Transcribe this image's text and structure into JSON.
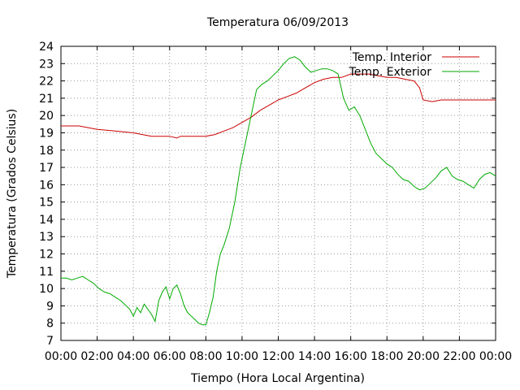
{
  "chart_data": {
    "type": "line",
    "title": "Temperatura 06/09/2013",
    "xlabel": "Tiempo (Hora Local Argentina)",
    "ylabel": "Temperatura (Grados Celsius)",
    "xlim": [
      0,
      24
    ],
    "ylim": [
      7,
      24
    ],
    "x_ticks": [
      "00:00",
      "02:00",
      "04:00",
      "06:00",
      "08:00",
      "10:00",
      "12:00",
      "14:00",
      "16:00",
      "18:00",
      "20:00",
      "22:00",
      "00:00"
    ],
    "y_ticks": [
      7,
      8,
      9,
      10,
      11,
      12,
      13,
      14,
      15,
      16,
      17,
      18,
      19,
      20,
      21,
      22,
      23,
      24
    ],
    "grid": true,
    "legend_position": "top-right",
    "series": [
      {
        "name": "Temp. Interior",
        "color": "#cc0000",
        "x": [
          0,
          1,
          2,
          3,
          4,
          4.5,
          5,
          6,
          6.4,
          6.6,
          7,
          8,
          8.5,
          9,
          9.5,
          10,
          10.5,
          11,
          11.5,
          12,
          12.5,
          13,
          13.5,
          14,
          14.5,
          15,
          15.5,
          16,
          16.5,
          17,
          17.5,
          18,
          18.5,
          19,
          19.5,
          19.8,
          20,
          20.5,
          21,
          22,
          23,
          24
        ],
        "y": [
          19.4,
          19.4,
          19.2,
          19.1,
          19.0,
          18.9,
          18.8,
          18.8,
          18.7,
          18.8,
          18.8,
          18.8,
          18.9,
          19.1,
          19.3,
          19.6,
          19.9,
          20.3,
          20.6,
          20.9,
          21.1,
          21.3,
          21.6,
          21.9,
          22.1,
          22.2,
          22.2,
          22.4,
          22.4,
          22.4,
          22.3,
          22.2,
          22.2,
          22.1,
          22.0,
          21.6,
          20.9,
          20.8,
          20.9,
          20.9,
          20.9,
          20.9
        ]
      },
      {
        "name": "Temp. Exterior",
        "color": "#00aa00",
        "x": [
          0,
          0.3,
          0.6,
          0.9,
          1.2,
          1.5,
          1.8,
          2.1,
          2.4,
          2.7,
          3.0,
          3.3,
          3.6,
          3.8,
          4.0,
          4.2,
          4.4,
          4.6,
          4.8,
          5.0,
          5.2,
          5.4,
          5.6,
          5.8,
          6.0,
          6.2,
          6.4,
          6.6,
          6.8,
          7.0,
          7.2,
          7.4,
          7.6,
          7.8,
          8.0,
          8.2,
          8.4,
          8.6,
          8.8,
          9.0,
          9.3,
          9.6,
          9.9,
          10.2,
          10.5,
          10.8,
          11.1,
          11.4,
          11.7,
          12.0,
          12.3,
          12.6,
          12.9,
          13.2,
          13.5,
          13.8,
          14.1,
          14.4,
          14.7,
          15.0,
          15.3,
          15.6,
          15.9,
          16.2,
          16.5,
          16.8,
          17.1,
          17.4,
          17.7,
          18.0,
          18.3,
          18.6,
          18.9,
          19.2,
          19.5,
          19.8,
          20.1,
          20.4,
          20.7,
          21.0,
          21.3,
          21.6,
          21.9,
          22.2,
          22.5,
          22.8,
          23.1,
          23.4,
          23.7,
          24.0
        ],
        "y": [
          10.6,
          10.6,
          10.5,
          10.6,
          10.7,
          10.5,
          10.3,
          10.0,
          9.8,
          9.7,
          9.5,
          9.3,
          9.0,
          8.8,
          8.4,
          8.9,
          8.6,
          9.1,
          8.8,
          8.5,
          8.1,
          9.3,
          9.8,
          10.1,
          9.4,
          10.0,
          10.2,
          9.7,
          9.0,
          8.6,
          8.4,
          8.2,
          8.0,
          7.9,
          7.9,
          8.6,
          9.5,
          11.0,
          12.0,
          12.5,
          13.5,
          15.0,
          17.0,
          18.5,
          20.0,
          21.5,
          21.8,
          22.0,
          22.3,
          22.6,
          23.0,
          23.3,
          23.4,
          23.2,
          22.8,
          22.5,
          22.6,
          22.7,
          22.7,
          22.6,
          22.4,
          21.0,
          20.3,
          20.5,
          20.0,
          19.2,
          18.4,
          17.8,
          17.5,
          17.2,
          17.0,
          16.6,
          16.3,
          16.2,
          15.9,
          15.7,
          15.8,
          16.1,
          16.4,
          16.8,
          17.0,
          16.5,
          16.3,
          16.2,
          16.0,
          15.8,
          16.3,
          16.6,
          16.7,
          16.5
        ]
      }
    ]
  }
}
